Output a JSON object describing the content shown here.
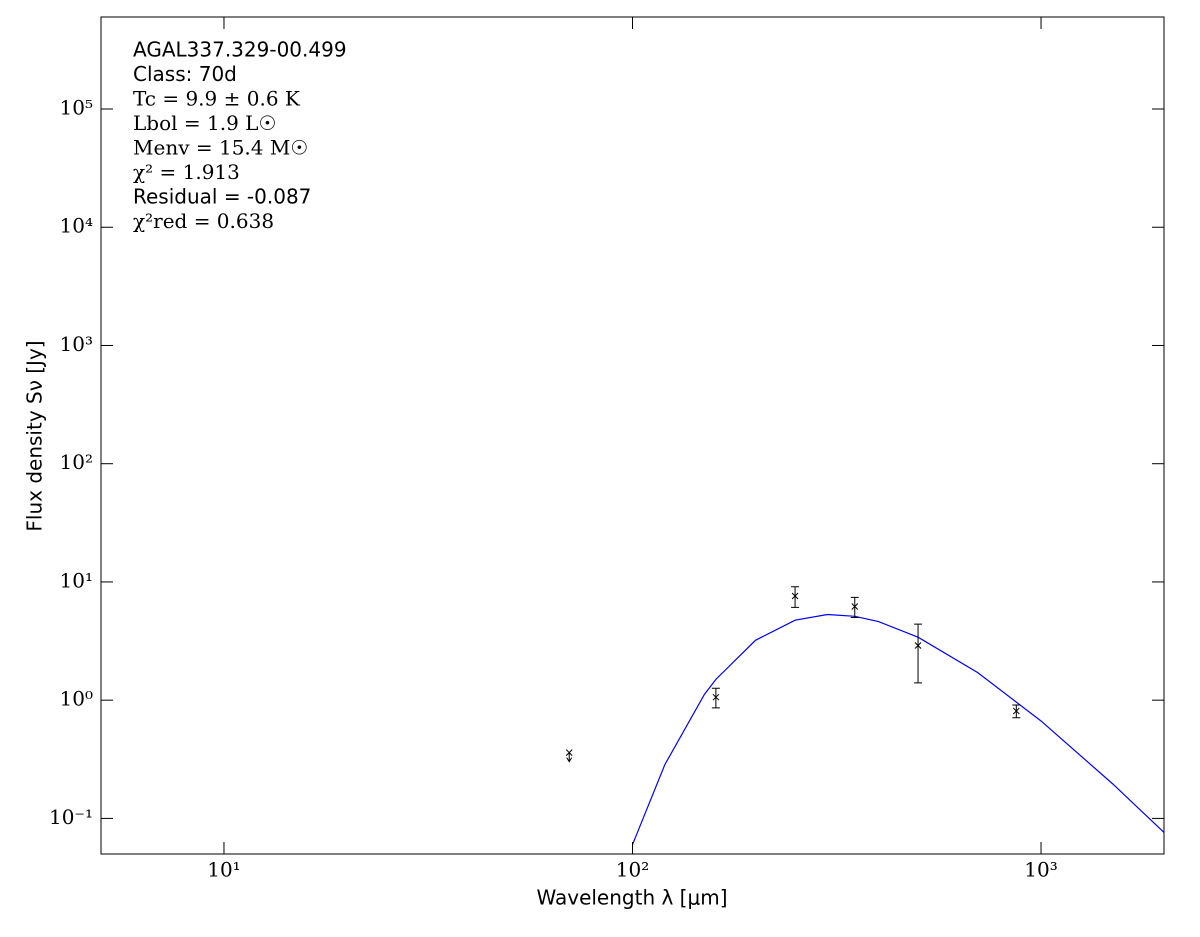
{
  "chart_data": {
    "type": "sed",
    "annotations": [
      "AGAL337.329-00.499",
      "Class: 70d",
      "Tc = 9.9 ± 0.6 K",
      "Lbol = 1.9 L☉",
      "Menv = 15.4 M☉",
      "χ² = 1.913",
      "Residual = -0.087",
      "χ²red = 0.638"
    ],
    "x_label": "Wavelength λ [μm]",
    "y_label": "Flux density Sν [Jy]",
    "log_x": true,
    "log_y": true,
    "xlim": [
      5,
      2000
    ],
    "ylim": [
      0.05,
      600000
    ],
    "xticks": [
      {
        "value": 10,
        "label": "10¹"
      },
      {
        "value": 100,
        "label": "10²"
      },
      {
        "value": 1000,
        "label": "10³"
      }
    ],
    "yticks": [
      {
        "value": 0.1,
        "label": "10⁻¹"
      },
      {
        "value": 1,
        "label": "10⁰"
      },
      {
        "value": 10,
        "label": "10¹"
      },
      {
        "value": 100,
        "label": "10²"
      },
      {
        "value": 1000,
        "label": "10³"
      },
      {
        "value": 10000,
        "label": "10⁴"
      },
      {
        "value": 100000,
        "label": "10⁵"
      }
    ],
    "measurements": {
      "color": "#000000",
      "x": [
        160,
        250,
        350,
        500,
        870
      ],
      "values": [
        1.06,
        7.6,
        6.2,
        2.9,
        0.81
      ],
      "errors": [
        0.2,
        1.5,
        1.2,
        1.5,
        0.1
      ]
    },
    "upper_limits": {
      "color": "#000000",
      "x": [
        70
      ],
      "values": [
        0.36
      ]
    },
    "model": {
      "color": "#0000ff",
      "x": [
        100,
        120,
        150,
        160,
        200,
        250,
        300,
        350,
        400,
        500,
        700,
        1000,
        1500,
        2000
      ],
      "values": [
        0.06,
        0.285,
        1.12,
        1.5,
        3.21,
        4.75,
        5.3,
        5.12,
        4.62,
        3.41,
        1.71,
        0.667,
        0.195,
        0.076
      ]
    }
  }
}
